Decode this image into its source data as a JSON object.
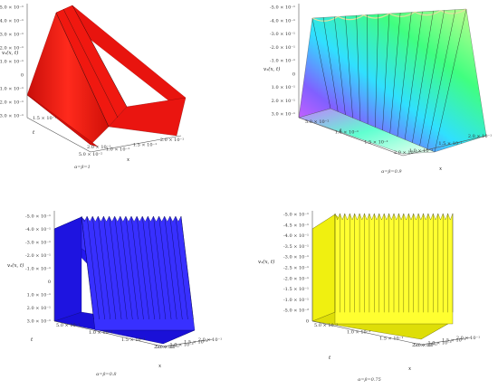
{
  "figure": {
    "panels": [
      {
        "id": "a",
        "zlabel": "v₁(x, t)",
        "caption": "α=β=1",
        "x_symbol": "x",
        "t_symbol": "t",
        "z_ticks": [
          "-5.0 × 10⁻¹",
          "-4.0 × 10⁻¹",
          "-3.0 × 10⁻¹",
          "-2.0 × 10⁻¹",
          "-1.0 × 10⁻¹",
          "0",
          "1.0 × 10⁻¹",
          "2.0 × 10⁻¹",
          "3.0 × 10⁻¹"
        ],
        "x_ticks": [
          "5.0 × 10⁻²",
          "1.0 × 10⁻¹",
          "1.5 × 10⁻¹",
          "2.0 × 10⁻¹"
        ],
        "t_ticks": [
          "1.5 × 10⁻¹",
          "2.0 × 10⁻¹"
        ],
        "surface_color": "#ff1a12",
        "ripples": 0
      },
      {
        "id": "b",
        "zlabel": "v₁(x, t)",
        "caption": "α=β=0.9",
        "x_symbol": "x",
        "t_symbol": "t",
        "z_ticks": [
          "-5.0 × 10⁻¹",
          "-4.0 × 10⁻¹",
          "-3.0 × 10⁻¹",
          "-2.0 × 10⁻¹",
          "-1.0 × 10⁻¹",
          "0",
          "1.0 × 10⁻¹",
          "2.0 × 10⁻¹",
          "3.0 × 10⁻¹"
        ],
        "x_ticks": [
          "1.0 × 10⁻¹",
          "1.5 × 10⁻¹",
          "2.0 × 10⁻¹"
        ],
        "t_ticks": [
          "5.0 × 10⁻²",
          "1.0 × 10⁻¹",
          "1.5 × 10⁻¹",
          "2.0 × 10⁻¹"
        ],
        "surface_color": "#a8e07a",
        "ripples": 6
      },
      {
        "id": "c",
        "zlabel": "v₁(x, t)",
        "caption": "α=β=0.8",
        "x_symbol": "x",
        "t_symbol": "t",
        "z_ticks": [
          "-5.0 × 10⁻¹",
          "-4.0 × 10⁻¹",
          "-3.0 × 10⁻¹",
          "-2.0 × 10⁻¹",
          "-1.0 × 10⁻¹",
          "0",
          "1.0 × 10⁻¹",
          "2.0 × 10⁻¹",
          "3.0 × 10⁻¹"
        ],
        "x_ticks": [
          "5.0 × 10⁻²",
          "1.0 × 10⁻¹",
          "1.5 × 10⁻¹",
          "2.0 × 10⁻¹"
        ],
        "t_ticks": [
          "5.0 × 10⁻²",
          "1.0 × 10⁻¹",
          "1.5 × 10⁻¹",
          "2.0 × 10⁻¹"
        ],
        "surface_color": "#1f17ff",
        "ripples": 18
      },
      {
        "id": "d",
        "zlabel": "v₁(x, t)",
        "caption": "α=β=0.75",
        "x_symbol": "x",
        "t_symbol": "t",
        "z_ticks": [
          "-5.0 × 10⁻¹",
          "-4.5 × 10⁻¹",
          "-4.0 × 10⁻¹",
          "-3.5 × 10⁻¹",
          "-3.0 × 10⁻¹",
          "-2.5 × 10⁻¹",
          "-2.0 × 10⁻¹",
          "-1.5 × 10⁻¹",
          "-1.0 × 10⁻¹",
          "-5.0 × 10⁻²",
          "0"
        ],
        "x_ticks": [
          "5.0 × 10⁻²",
          "1.0 × 10⁻¹",
          "1.5 × 10⁻¹",
          "2.0 × 10⁻¹"
        ],
        "t_ticks": [
          "5.0 × 10⁻²",
          "1.0 × 10⁻¹",
          "1.5 × 10⁻¹",
          "2.0 × 10⁻¹"
        ],
        "surface_color": "#f2f20a",
        "ripples": 24
      }
    ]
  }
}
